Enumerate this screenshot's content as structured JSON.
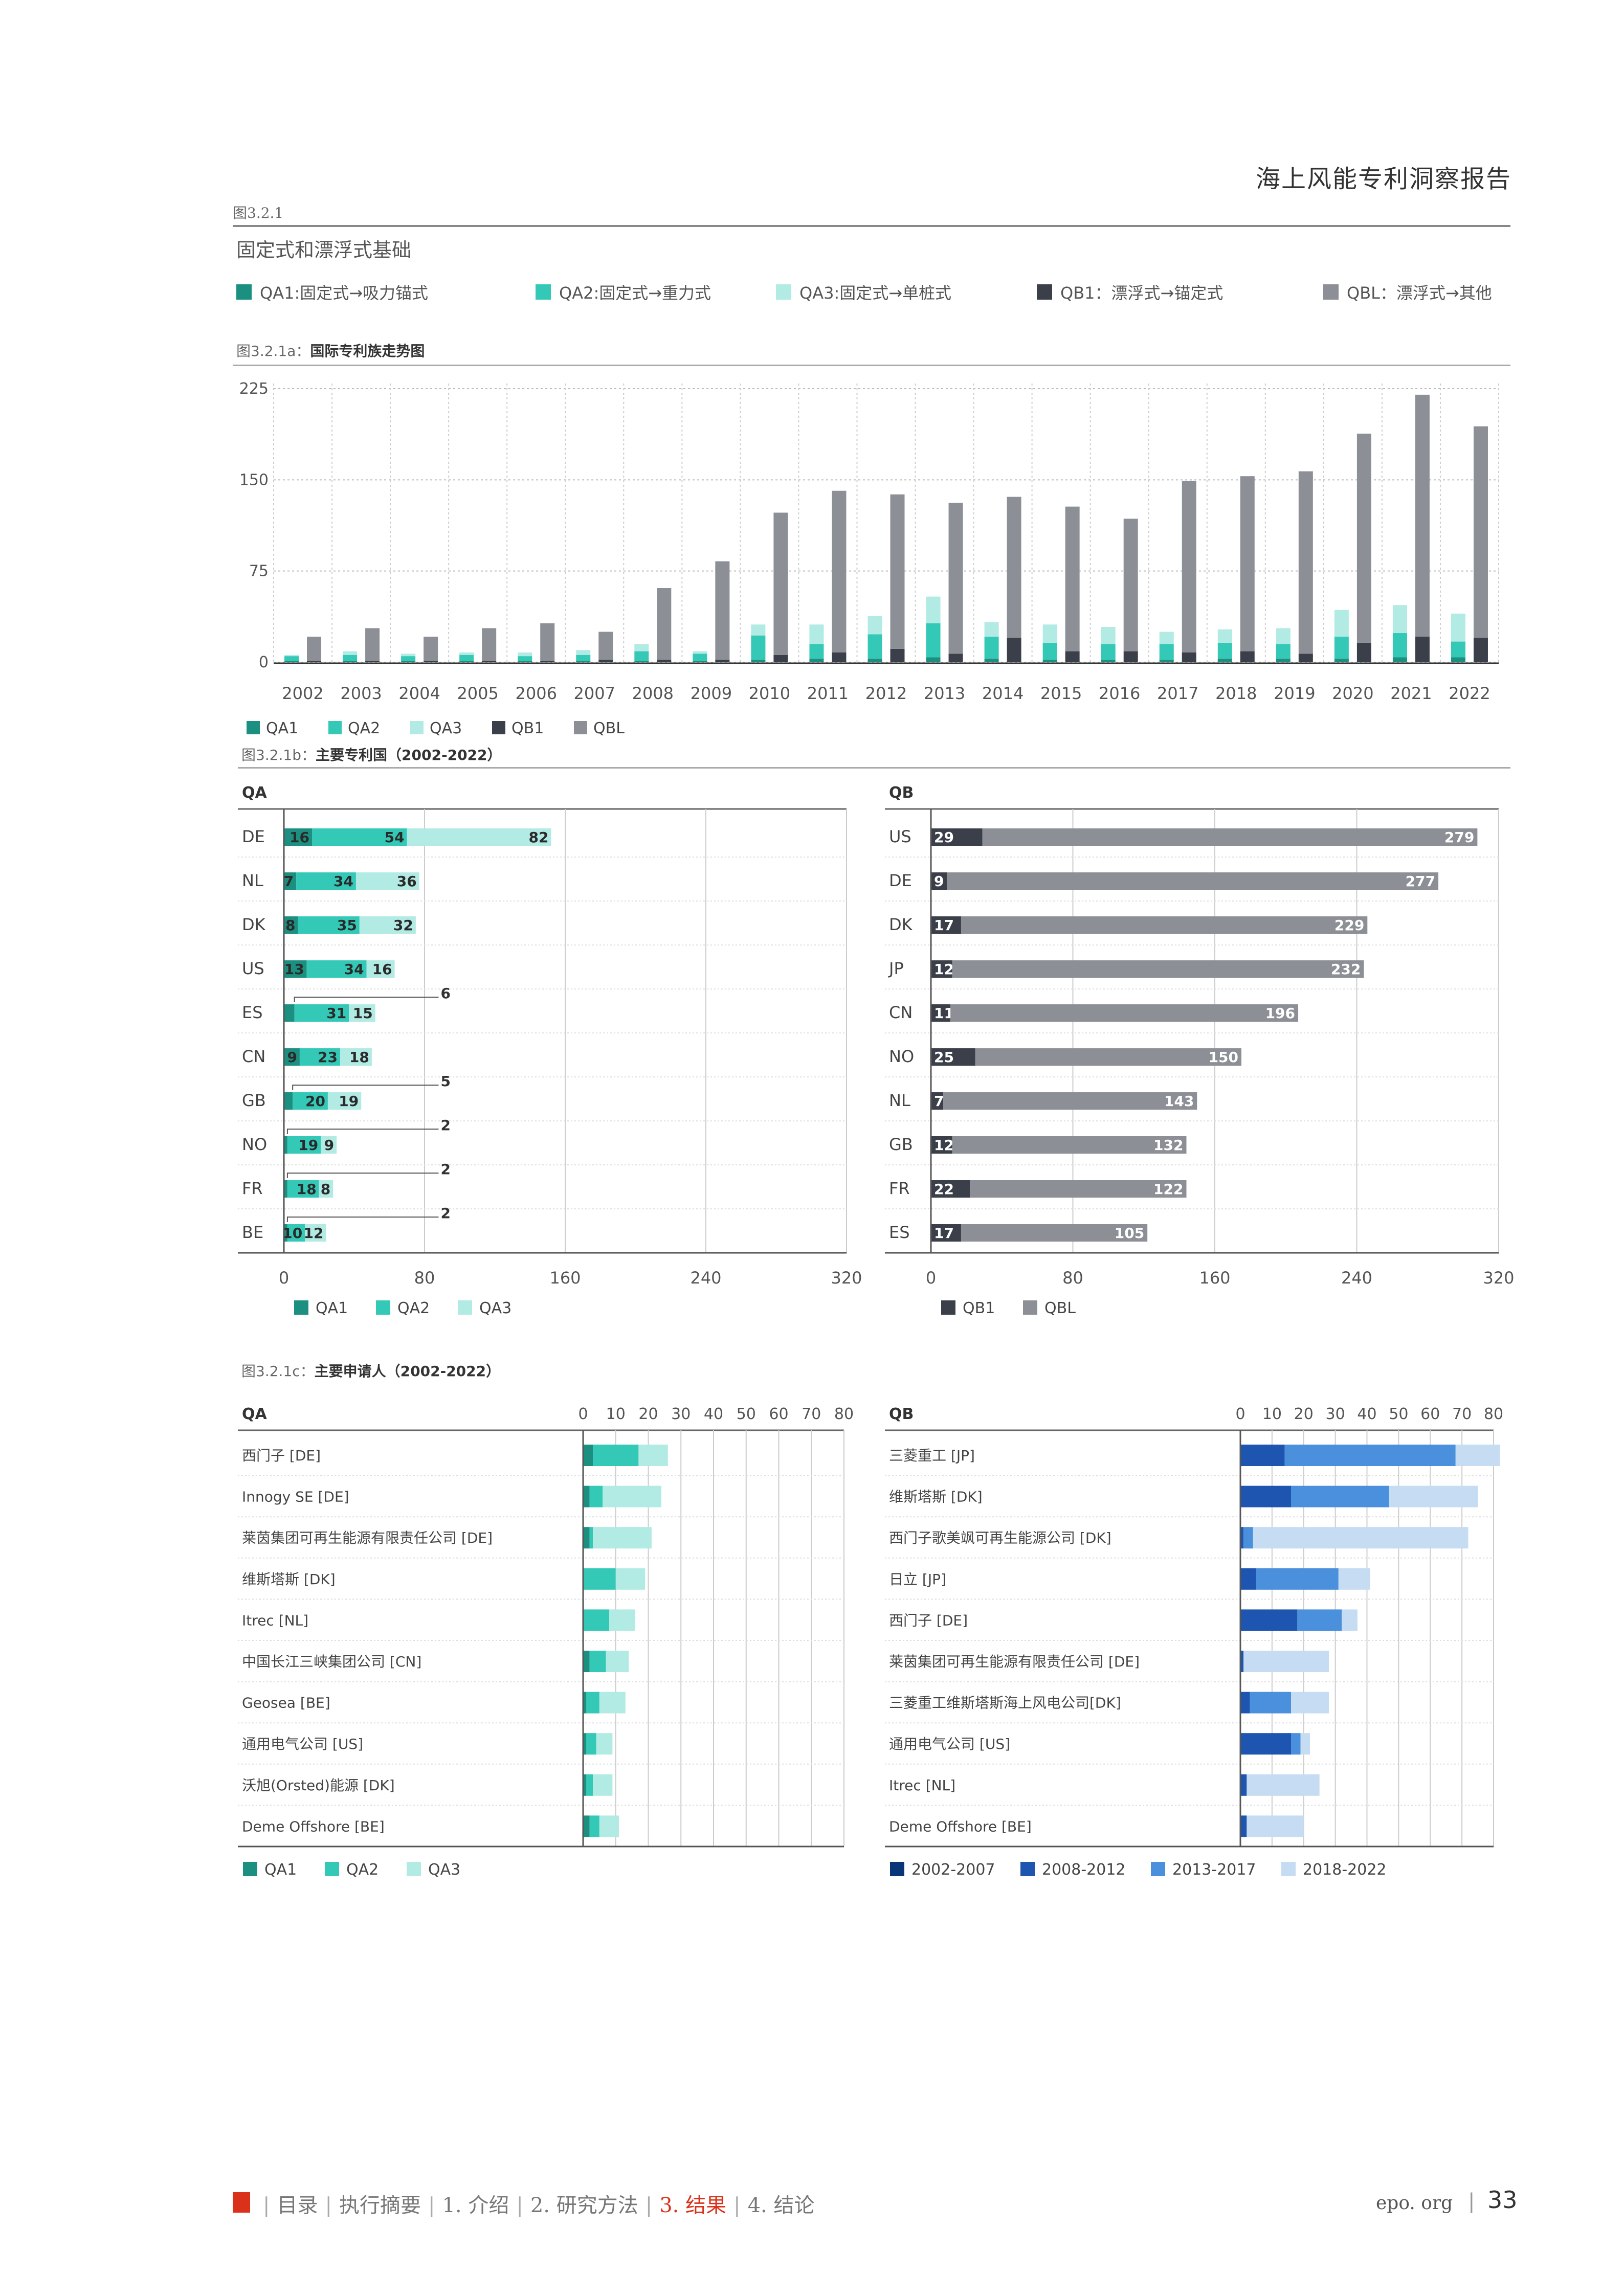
{
  "header": {
    "report_title": "海上风能专利洞察报告",
    "fig_label": "图3.2.1",
    "fig_title": "固定式和漂浮式基础"
  },
  "top_legend": [
    {
      "label": "QA1:固定式→吸力锚式",
      "color": "#1c9080"
    },
    {
      "label": "QA2:固定式→重力式",
      "color": "#34c9b7"
    },
    {
      "label": "QA3:固定式→单桩式",
      "color": "#b2ebe3"
    },
    {
      "label": "QB1：漂浮式→锚定式",
      "color": "#3b3f4a"
    },
    {
      "label": "QBL：漂浮式→其他",
      "color": "#8c8f96"
    }
  ],
  "colors": {
    "QA1": "#1c9080",
    "QA2": "#34c9b7",
    "QA3": "#b2ebe3",
    "QB1": "#3b3f4a",
    "QBL": "#8c8f96",
    "P1": "#0b3579",
    "P2": "#1e55b0",
    "P3": "#4a90dc",
    "P4": "#c6dcf2"
  },
  "fig_a": {
    "prefix": "图3.2.1a：",
    "title": "国际专利族走势图"
  },
  "fig_b": {
    "prefix": "图3.2.1b：",
    "title": "主要专利国（2002-2022）"
  },
  "fig_c": {
    "prefix": "图3.2.1c：",
    "title": "主要申请人（2002-2022）"
  },
  "chart_data": [
    {
      "type": "bar",
      "stacked": true,
      "categories": [
        "2002",
        "2003",
        "2004",
        "2005",
        "2006",
        "2007",
        "2008",
        "2009",
        "2010",
        "2011",
        "2012",
        "2013",
        "2014",
        "2015",
        "2016",
        "2017",
        "2018",
        "2019",
        "2020",
        "2021",
        "2022"
      ],
      "yticks": [
        0,
        75,
        150,
        225
      ],
      "ylim": [
        0,
        230
      ],
      "groups": [
        {
          "series": [
            {
              "name": "QA1",
              "values": [
                1,
                1,
                1,
                1,
                1,
                1,
                1,
                1,
                2,
                3,
                3,
                4,
                3,
                2,
                2,
                2,
                3,
                3,
                3,
                4,
                4
              ]
            },
            {
              "name": "QA2",
              "values": [
                4,
                5,
                4,
                5,
                4,
                5,
                8,
                6,
                20,
                12,
                20,
                28,
                18,
                14,
                13,
                13,
                13,
                12,
                18,
                20,
                13
              ]
            },
            {
              "name": "QA3",
              "values": [
                1,
                3,
                2,
                2,
                3,
                4,
                6,
                2,
                9,
                16,
                15,
                22,
                12,
                15,
                14,
                10,
                11,
                13,
                22,
                23,
                23
              ]
            }
          ]
        },
        {
          "series": [
            {
              "name": "QB1",
              "values": [
                1,
                1,
                1,
                1,
                1,
                2,
                2,
                2,
                6,
                8,
                11,
                7,
                20,
                9,
                9,
                8,
                9,
                7,
                16,
                21,
                20
              ]
            },
            {
              "name": "QBL",
              "values": [
                20,
                27,
                20,
                27,
                31,
                23,
                59,
                81,
                117,
                133,
                127,
                124,
                116,
                119,
                109,
                141,
                144,
                150,
                172,
                199,
                174
              ]
            }
          ]
        }
      ],
      "legend": [
        "QA1",
        "QA2",
        "QA3",
        "QB1",
        "QBL"
      ],
      "legend_position": "bottom-left"
    },
    {
      "type": "bar",
      "orientation": "horizontal",
      "stacked": true,
      "panel_title": "QA",
      "categories": [
        "DE",
        "NL",
        "DK",
        "US",
        "ES",
        "CN",
        "GB",
        "NO",
        "FR",
        "BE"
      ],
      "series": [
        {
          "name": "QA1",
          "values": [
            16,
            7,
            8,
            13,
            6,
            9,
            5,
            2,
            2,
            2
          ]
        },
        {
          "name": "QA2",
          "values": [
            54,
            34,
            35,
            34,
            31,
            23,
            20,
            19,
            18,
            10
          ]
        },
        {
          "name": "QA3",
          "values": [
            82,
            36,
            32,
            16,
            15,
            18,
            19,
            9,
            8,
            12
          ]
        }
      ],
      "xticks": [
        0,
        80,
        160,
        240,
        320
      ],
      "xlim": [
        0,
        320
      ],
      "legend": [
        "QA1",
        "QA2",
        "QA3"
      ]
    },
    {
      "type": "bar",
      "orientation": "horizontal",
      "stacked": true,
      "panel_title": "QB",
      "categories": [
        "US",
        "DE",
        "DK",
        "JP",
        "CN",
        "NO",
        "NL",
        "GB",
        "FR",
        "ES"
      ],
      "series": [
        {
          "name": "QB1",
          "values": [
            29,
            9,
            17,
            12,
            11,
            25,
            7,
            12,
            22,
            17
          ]
        },
        {
          "name": "QBL",
          "values": [
            279,
            277,
            229,
            232,
            196,
            150,
            143,
            132,
            122,
            105
          ]
        }
      ],
      "xticks": [
        0,
        80,
        160,
        240,
        320
      ],
      "xlim": [
        0,
        320
      ],
      "legend": [
        "QB1",
        "QBL"
      ]
    },
    {
      "type": "bar",
      "orientation": "horizontal",
      "stacked": true,
      "panel_title": "QA",
      "categories": [
        "西门子 [DE]",
        "Innogy SE [DE]",
        "莱茵集团可再生能源有限责任公司 [DE]",
        "维斯塔斯 [DK]",
        "Itrec [NL]",
        "中国长江三峡集团公司 [CN]",
        "Geosea [BE]",
        "通用电气公司 [US]",
        "沃旭(Orsted)能源 [DK]",
        "Deme Offshore [BE]"
      ],
      "series": [
        {
          "name": "QA1",
          "values": [
            3,
            2,
            2,
            0,
            0,
            2,
            1,
            1,
            1,
            2
          ]
        },
        {
          "name": "QA2",
          "values": [
            14,
            4,
            1,
            10,
            8,
            5,
            4,
            3,
            2,
            3
          ]
        },
        {
          "name": "QA3",
          "values": [
            9,
            18,
            18,
            9,
            8,
            7,
            8,
            5,
            6,
            6
          ]
        }
      ],
      "xticks": [
        0,
        10,
        20,
        30,
        40,
        50,
        60,
        70,
        80
      ],
      "xlim": [
        0,
        80
      ],
      "legend": [
        "QA1",
        "QA2",
        "QA3"
      ]
    },
    {
      "type": "bar",
      "orientation": "horizontal",
      "stacked": true,
      "panel_title": "QB",
      "categories": [
        "三菱重工 [JP]",
        "维斯塔斯 [DK]",
        "西门子歌美飒可再生能源公司 [DK]",
        "日立 [JP]",
        "西门子 [DE]",
        "莱茵集团可再生能源有限责任公司 [DE]",
        "三菱重工维斯塔斯海上风电公司[DK]",
        "通用电气公司 [US]",
        "Itrec [NL]",
        "Deme Offshore [BE]"
      ],
      "series": [
        {
          "name": "2002-2007",
          "values": [
            0,
            0,
            0,
            0,
            0,
            0,
            0,
            0,
            0,
            0
          ]
        },
        {
          "name": "2008-2012",
          "values": [
            14,
            16,
            1,
            5,
            18,
            1,
            3,
            16,
            2,
            2
          ]
        },
        {
          "name": "2013-2017",
          "values": [
            54,
            31,
            3,
            26,
            14,
            0,
            13,
            3,
            0,
            0
          ]
        },
        {
          "name": "2018-2022",
          "values": [
            14,
            28,
            68,
            10,
            5,
            27,
            12,
            3,
            23,
            18
          ]
        }
      ],
      "xticks": [
        0,
        10,
        20,
        30,
        40,
        50,
        60,
        70,
        80
      ],
      "xlim": [
        0,
        80
      ],
      "legend": [
        "2002-2007",
        "2008-2012",
        "2013-2017",
        "2018-2022"
      ]
    }
  ],
  "footer": {
    "nav": [
      "目录",
      "执行摘要",
      "1. 介绍",
      "2. 研究方法",
      "3. 结果",
      "4. 结论"
    ],
    "active_index": 4,
    "site": "epo. org",
    "page": "33"
  }
}
